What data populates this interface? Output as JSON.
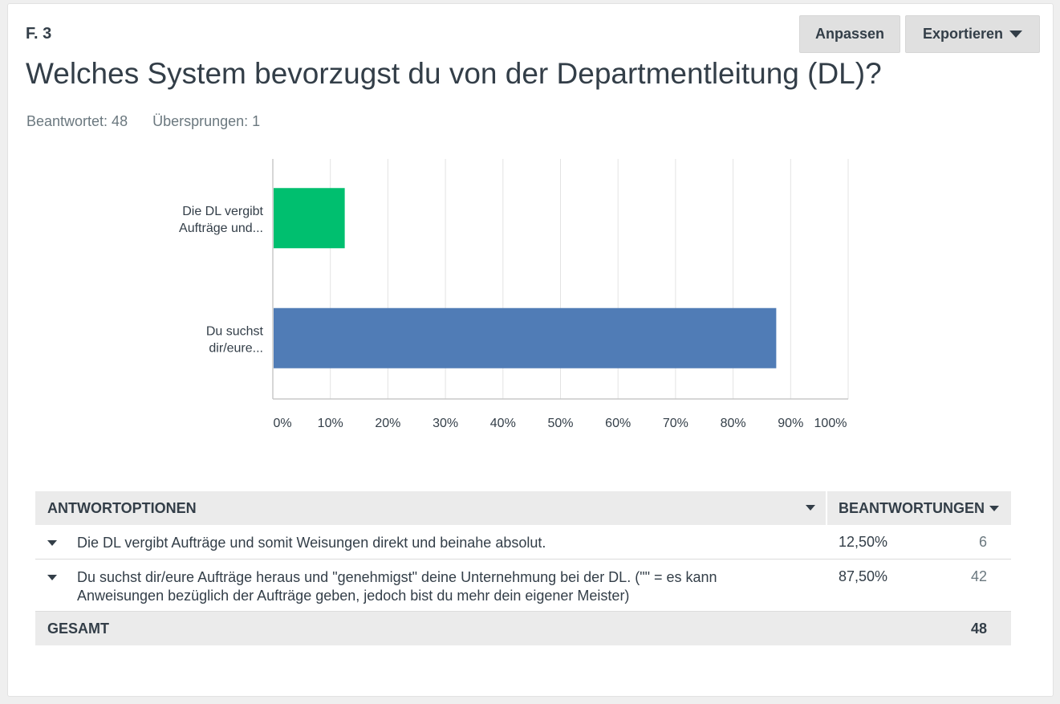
{
  "question": {
    "number": "F. 3",
    "title": "Welches System bevorzugst du von der Departmentleitung (DL)?",
    "answered": "Beantwortet: 48",
    "skipped": "Übersprungen: 1"
  },
  "toolbar": {
    "customize_label": "Anpassen",
    "export_label": "Exportieren"
  },
  "colors": {
    "bar_1": "#00bf6f",
    "bar_2": "#507cb6",
    "grid": "#e3e3e3",
    "axis": "#c8c8c8"
  },
  "chart_data": {
    "type": "bar",
    "orientation": "horizontal",
    "categories": [
      "Die DL vergibt Aufträge und...",
      "Du suchst dir/eure..."
    ],
    "category_lines": [
      [
        "Die DL vergibt",
        "Aufträge und..."
      ],
      [
        "Du suchst",
        "dir/eure..."
      ]
    ],
    "values": [
      12.5,
      87.5
    ],
    "xlim": [
      0,
      100
    ],
    "xticks": [
      "0%",
      "10%",
      "20%",
      "30%",
      "40%",
      "50%",
      "60%",
      "70%",
      "80%",
      "90%",
      "100%"
    ],
    "grid": true
  },
  "table": {
    "header_options": "ANTWORTOPTIONEN",
    "header_responses": "BEANTWORTUNGEN",
    "rows": [
      {
        "label": "Die DL vergibt Aufträge und somit Weisungen direkt und beinahe absolut.",
        "percent": "12,50%",
        "count": "6"
      },
      {
        "label": "Du suchst dir/eure Aufträge heraus und \"genehmigst\" deine Unternehmung bei der DL. (\"\" = es kann Anweisungen bezüglich der Aufträge geben, jedoch bist du mehr dein eigener Meister)",
        "percent": "87,50%",
        "count": "42"
      }
    ],
    "total_label": "GESAMT",
    "total_value": "48"
  }
}
